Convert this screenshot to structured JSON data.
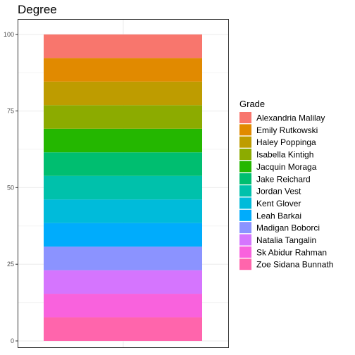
{
  "chart_data": {
    "type": "bar",
    "title": "Degree",
    "xlabel": "",
    "ylabel": "",
    "stacked": true,
    "ylim": [
      0,
      100
    ],
    "yticks": [
      0,
      25,
      50,
      75,
      100
    ],
    "grid": true,
    "legend_position": "right",
    "legend_title": "Grade",
    "series": [
      {
        "name": "Alexandria Malilay",
        "value": 7.69,
        "color": "#F8766D"
      },
      {
        "name": "Emily Rutkowski",
        "value": 7.69,
        "color": "#E18A00"
      },
      {
        "name": "Haley Poppinga",
        "value": 7.69,
        "color": "#BE9C00"
      },
      {
        "name": "Isabella Kintigh",
        "value": 7.69,
        "color": "#8CAB00"
      },
      {
        "name": "Jacquin Moraga",
        "value": 7.69,
        "color": "#24B700"
      },
      {
        "name": "Jake Reichard",
        "value": 7.69,
        "color": "#00BE70"
      },
      {
        "name": "Jordan Vest",
        "value": 7.69,
        "color": "#00C1AB"
      },
      {
        "name": "Kent Glover",
        "value": 7.69,
        "color": "#00BBDA"
      },
      {
        "name": "Leah Barkai",
        "value": 7.69,
        "color": "#00ACFC"
      },
      {
        "name": "Madigan Boborci",
        "value": 7.69,
        "color": "#8B93FF"
      },
      {
        "name": "Natalia Tangalin",
        "value": 7.69,
        "color": "#D575FE"
      },
      {
        "name": "Sk Abidur Rahman",
        "value": 7.69,
        "color": "#F962DD"
      },
      {
        "name": "Zoe Sidana Bunnath",
        "value": 7.69,
        "color": "#FF65AC"
      }
    ]
  }
}
